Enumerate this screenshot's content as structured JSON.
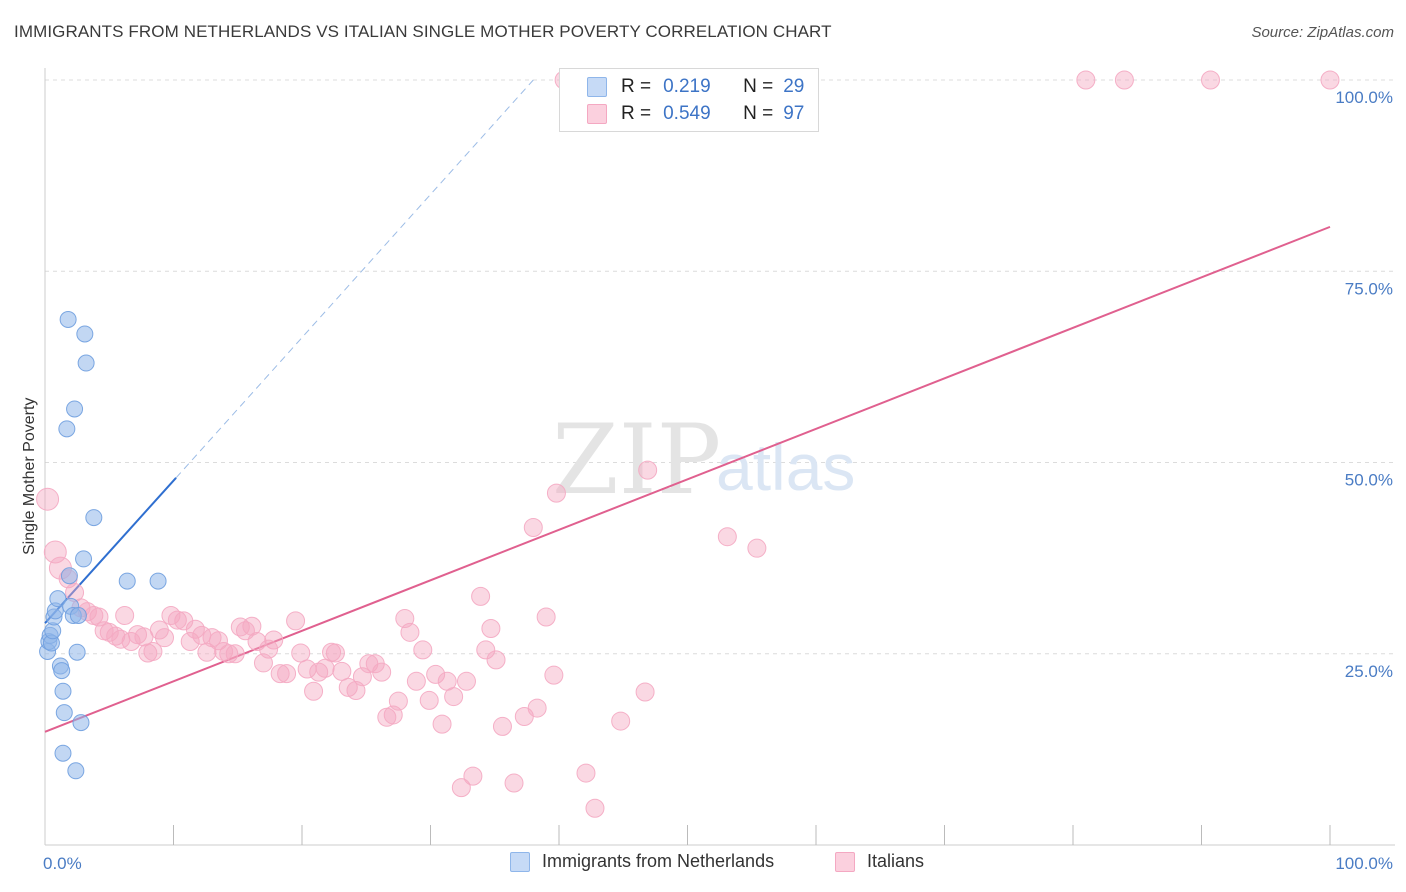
{
  "title": "IMMIGRANTS FROM NETHERLANDS VS ITALIAN SINGLE MOTHER POVERTY CORRELATION CHART",
  "source": "Source: ZipAtlas.com",
  "watermark": {
    "zip": "ZIP",
    "atlas": "atlas"
  },
  "legend": {
    "rows": [
      {
        "r_label": "R =",
        "r_value": "0.219",
        "n_label": "N =",
        "n_value": "29"
      },
      {
        "r_label": "R =",
        "r_value": "0.549",
        "n_label": "N =",
        "n_value": "97"
      }
    ]
  },
  "bottom_legend": {
    "series1": "Immigrants from Netherlands",
    "series2": "Italians"
  },
  "chart_data": {
    "type": "scatter",
    "title": "IMMIGRANTS FROM NETHERLANDS VS ITALIAN SINGLE MOTHER POVERTY CORRELATION CHART",
    "xlabel": "",
    "ylabel": "Single Mother Poverty",
    "xlim": [
      0,
      100
    ],
    "ylim": [
      0,
      100
    ],
    "x_tick_labels": [
      "0.0%",
      "100.0%"
    ],
    "y_tick_labels": [
      "25.0%",
      "50.0%",
      "75.0%",
      "100.0%"
    ],
    "y_ticks": [
      25,
      50,
      75,
      100
    ],
    "grid": true,
    "legend_position": "top-center",
    "colors": {
      "series1": "#8fb6ea",
      "series1_line": "#2f6fd0",
      "series2": "#f4a8c2",
      "series2_line": "#e0608f",
      "tick": "#4a7cc4"
    },
    "series": [
      {
        "name": "Immigrants from Netherlands",
        "r": 0.219,
        "n": 29,
        "points": [
          [
            0.2,
            25.3
          ],
          [
            0.3,
            26.6
          ],
          [
            0.4,
            27.4
          ],
          [
            0.5,
            26.4
          ],
          [
            0.6,
            28.0
          ],
          [
            0.7,
            29.8
          ],
          [
            0.8,
            30.6
          ],
          [
            1.0,
            32.2
          ],
          [
            1.2,
            23.4
          ],
          [
            1.3,
            22.8
          ],
          [
            1.4,
            20.1
          ],
          [
            1.5,
            17.3
          ],
          [
            1.4,
            12.0
          ],
          [
            1.7,
            54.4
          ],
          [
            1.8,
            68.7
          ],
          [
            1.9,
            35.2
          ],
          [
            2.0,
            31.2
          ],
          [
            2.2,
            30.0
          ],
          [
            2.3,
            57.0
          ],
          [
            2.4,
            9.7
          ],
          [
            2.5,
            25.2
          ],
          [
            2.6,
            30.0
          ],
          [
            2.8,
            16.0
          ],
          [
            3.0,
            37.4
          ],
          [
            3.1,
            66.8
          ],
          [
            3.2,
            63.0
          ],
          [
            3.8,
            42.8
          ],
          [
            6.4,
            34.5
          ],
          [
            8.8,
            34.5
          ]
        ],
        "trend": {
          "x": [
            0,
            10.2
          ],
          "y": [
            29.0,
            48.0
          ],
          "dashed_extension_to": [
            38,
            100
          ]
        }
      },
      {
        "name": "Italians",
        "r": 0.549,
        "n": 97,
        "points": [
          [
            0.2,
            45.2
          ],
          [
            0.8,
            38.3
          ],
          [
            1.2,
            36.2
          ],
          [
            1.8,
            34.8
          ],
          [
            2.3,
            33.0
          ],
          [
            2.8,
            31.0
          ],
          [
            3.3,
            30.5
          ],
          [
            3.8,
            30.0
          ],
          [
            4.2,
            29.8
          ],
          [
            4.6,
            28.0
          ],
          [
            5.0,
            27.8
          ],
          [
            5.5,
            27.3
          ],
          [
            5.9,
            26.9
          ],
          [
            6.2,
            30.0
          ],
          [
            6.7,
            26.6
          ],
          [
            7.2,
            27.5
          ],
          [
            7.7,
            27.2
          ],
          [
            8.0,
            25.1
          ],
          [
            8.4,
            25.3
          ],
          [
            8.9,
            28.1
          ],
          [
            9.3,
            27.1
          ],
          [
            9.8,
            30.0
          ],
          [
            10.3,
            29.4
          ],
          [
            10.8,
            29.3
          ],
          [
            11.3,
            26.6
          ],
          [
            11.7,
            28.2
          ],
          [
            12.2,
            27.4
          ],
          [
            12.6,
            25.2
          ],
          [
            13.0,
            27.1
          ],
          [
            13.5,
            26.7
          ],
          [
            13.9,
            25.3
          ],
          [
            14.3,
            25.0
          ],
          [
            14.8,
            25.0
          ],
          [
            15.2,
            28.5
          ],
          [
            15.6,
            28.0
          ],
          [
            16.1,
            28.6
          ],
          [
            16.5,
            26.6
          ],
          [
            17.0,
            23.8
          ],
          [
            17.4,
            25.6
          ],
          [
            17.8,
            26.8
          ],
          [
            18.3,
            22.4
          ],
          [
            18.8,
            22.4
          ],
          [
            19.5,
            29.3
          ],
          [
            19.9,
            25.1
          ],
          [
            20.4,
            23.0
          ],
          [
            20.9,
            20.1
          ],
          [
            21.3,
            22.6
          ],
          [
            21.8,
            23.1
          ],
          [
            22.3,
            25.2
          ],
          [
            22.6,
            25.1
          ],
          [
            23.1,
            22.7
          ],
          [
            23.6,
            20.6
          ],
          [
            24.2,
            20.2
          ],
          [
            24.7,
            22.0
          ],
          [
            25.2,
            23.7
          ],
          [
            25.7,
            23.7
          ],
          [
            26.2,
            22.6
          ],
          [
            26.6,
            16.7
          ],
          [
            27.1,
            17.0
          ],
          [
            27.5,
            18.8
          ],
          [
            28.0,
            29.6
          ],
          [
            28.4,
            27.8
          ],
          [
            28.9,
            21.4
          ],
          [
            29.4,
            25.5
          ],
          [
            29.9,
            18.9
          ],
          [
            30.4,
            22.3
          ],
          [
            30.9,
            15.8
          ],
          [
            31.3,
            21.4
          ],
          [
            31.8,
            19.4
          ],
          [
            32.4,
            7.5
          ],
          [
            32.8,
            21.4
          ],
          [
            33.3,
            9.0
          ],
          [
            33.9,
            32.5
          ],
          [
            34.3,
            25.5
          ],
          [
            34.7,
            28.3
          ],
          [
            35.1,
            24.2
          ],
          [
            35.6,
            15.5
          ],
          [
            36.5,
            8.1
          ],
          [
            37.3,
            16.8
          ],
          [
            38.0,
            41.5
          ],
          [
            38.3,
            17.9
          ],
          [
            39.0,
            29.8
          ],
          [
            39.6,
            22.2
          ],
          [
            42.1,
            9.4
          ],
          [
            42.8,
            4.8
          ],
          [
            44.8,
            16.2
          ],
          [
            46.7,
            20.0
          ],
          [
            46.9,
            49.0
          ],
          [
            53.1,
            40.3
          ],
          [
            55.4,
            38.8
          ],
          [
            39.8,
            46.0
          ],
          [
            40.4,
            100
          ],
          [
            49.5,
            100
          ],
          [
            81.0,
            100
          ],
          [
            84.0,
            100
          ],
          [
            90.7,
            100
          ],
          [
            100.0,
            100
          ]
        ],
        "trend": {
          "x": [
            0,
            100
          ],
          "y": [
            14.8,
            80.8
          ]
        }
      }
    ]
  }
}
